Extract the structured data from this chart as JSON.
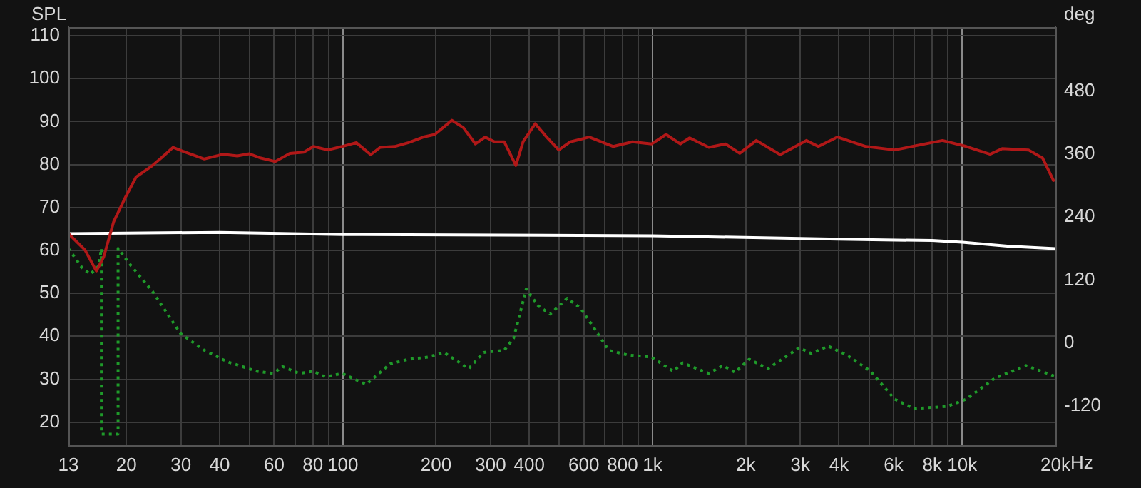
{
  "chart_data": {
    "type": "line",
    "ylabel": "SPL",
    "y2label": "deg",
    "log": "x",
    "grid": true,
    "legend": false,
    "marker": "none",
    "xlim": [
      13,
      20000
    ],
    "xticks": [
      13,
      20,
      30,
      40,
      {
        "value": 50,
        "label": null
      },
      60,
      {
        "value": 70,
        "label": null
      },
      80,
      {
        "value": 90,
        "label": null
      },
      100,
      200,
      300,
      400,
      {
        "value": 500,
        "label": null
      },
      600,
      {
        "value": 700,
        "label": null
      },
      800,
      {
        "value": 900,
        "label": null
      },
      {
        "value": 1000,
        "label": "1k"
      },
      {
        "value": 2000,
        "label": "2k"
      },
      {
        "value": 3000,
        "label": "3k"
      },
      {
        "value": 4000,
        "label": "4k"
      },
      {
        "value": 5000,
        "label": null
      },
      {
        "value": 6000,
        "label": "6k"
      },
      {
        "value": 7000,
        "label": null
      },
      {
        "value": 8000,
        "label": "8k"
      },
      {
        "value": 9000,
        "label": null
      },
      {
        "value": 10000,
        "label": "10k"
      },
      {
        "value": 20000,
        "label": "20k"
      }
    ],
    "xlabel": "Hz",
    "ylim": [
      14.5,
      112
    ],
    "yticks": [
      20,
      30,
      40,
      50,
      60,
      70,
      80,
      90,
      100,
      110
    ],
    "y2lim": [
      -196,
      602
    ],
    "y2ticks": [
      -120,
      0,
      120,
      240,
      360,
      480
    ],
    "series": [
      {
        "color": "#b01818",
        "line_style": "solid",
        "x": [
          13,
          14.7,
          16,
          16.9,
          18.2,
          19.8,
          21.5,
          24.3,
          25.9,
          28.3,
          30.4,
          35.7,
          41.1,
          45.6,
          49.9,
          54.4,
          60.5,
          67.4,
          74.9,
          80.4,
          89.4,
          99.4,
          110.5,
          123,
          132,
          147,
          163,
          182,
          198,
          225,
          245,
          268,
          288,
          309,
          332,
          362,
          382,
          418,
          455,
          498,
          543,
          625,
          747,
          861,
          994,
          1106,
          1229,
          1318,
          1520,
          1720,
          1912,
          2164,
          2584,
          3137,
          3430,
          3958,
          4888,
          6050,
          8636,
          10310,
          12300,
          13460,
          16370,
          18180,
          19800
        ],
        "values": [
          63.9,
          60.1,
          55.2,
          58.5,
          66.7,
          72.2,
          77.1,
          79.8,
          81.5,
          84.0,
          83.1,
          81.3,
          82.4,
          82.0,
          82.5,
          81.5,
          80.7,
          82.6,
          82.9,
          84.2,
          83.4,
          84.2,
          85.1,
          82.3,
          84.0,
          84.2,
          85.1,
          86.4,
          87.0,
          90.3,
          88.6,
          84.8,
          86.4,
          85.3,
          85.3,
          79.8,
          85.3,
          89.5,
          86.4,
          83.4,
          85.3,
          86.4,
          84.2,
          85.3,
          84.8,
          87.0,
          84.8,
          86.2,
          84.0,
          84.8,
          82.6,
          85.6,
          82.3,
          85.6,
          84.2,
          86.4,
          84.2,
          83.4,
          85.6,
          84.2,
          82.4,
          83.7,
          83.4,
          81.5,
          76.0
        ]
      },
      {
        "color": "#ffffff",
        "line_style": "solid",
        "x": [
          13,
          40,
          100,
          1000,
          4000,
          8000,
          10000,
          14000,
          20000
        ],
        "values": [
          63.9,
          64.2,
          63.7,
          63.4,
          62.6,
          62.3,
          61.9,
          61.0,
          60.4
        ]
      },
      {
        "color": "#1f9a2a",
        "line_style": "dotted",
        "axis": "y2",
        "x": [
          13,
          14.4,
          15.3,
          16.3,
          16.6,
          16.6,
          18.8,
          18.8,
          20.4,
          24.3,
          29.9,
          35.7,
          42.4,
          52.8,
          59.6,
          63.9,
          72.1,
          80.4,
          87.9,
          99.4,
          119,
          142,
          163,
          188,
          212,
          255,
          285,
          332,
          356,
          391,
          427,
          467,
          530,
          584,
          650,
          722,
          832,
          994,
          1167,
          1250,
          1520,
          1688,
          1847,
          2052,
          2360,
          2976,
          3254,
          3690,
          4241,
          5061,
          6050,
          6974,
          8937,
          10310,
          12760,
          16060,
          19800
        ],
        "values": [
          180,
          143,
          131,
          147,
          180,
          -174,
          -174,
          180,
          152,
          98,
          18,
          -14,
          -36,
          -54,
          -58,
          -45,
          -58,
          -54,
          -65,
          -58,
          -79,
          -40,
          -31,
          -27,
          -18,
          -49,
          -18,
          -14,
          9,
          103,
          71,
          55,
          85,
          67,
          27,
          -14,
          -23,
          -27,
          -54,
          -38,
          -58,
          -43,
          -56,
          -31,
          -49,
          -9,
          -20,
          -6,
          -23,
          -54,
          -107,
          -125,
          -121,
          -107,
          -67,
          -43,
          -63
        ]
      }
    ]
  }
}
